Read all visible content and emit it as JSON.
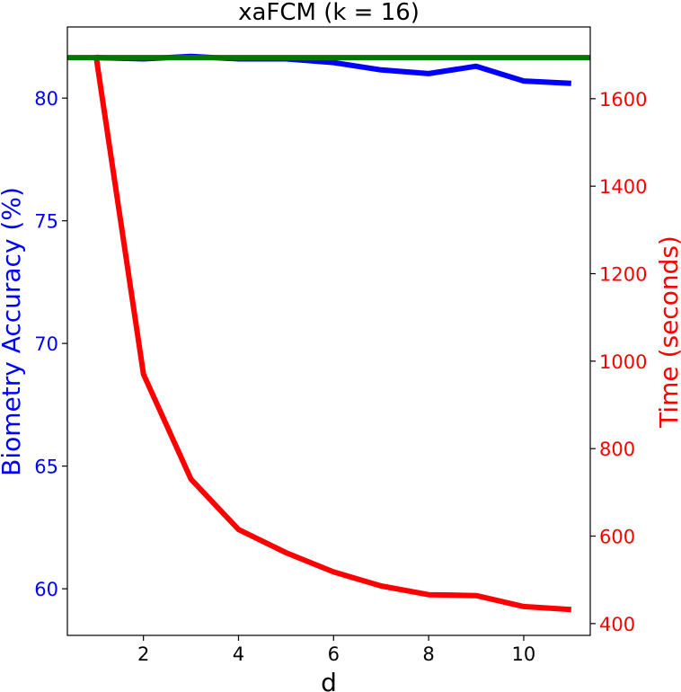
{
  "chart_data": {
    "type": "line",
    "title": "xaFCM (k = 16)",
    "xlabel": "d",
    "ylabel_left": "Biometry Accuracy (%)",
    "ylabel_right": "Time (seconds)",
    "xlim": [
      0.4,
      11.4
    ],
    "ylim_left": [
      58.1,
      82.9
    ],
    "ylim_right": [
      373,
      1764
    ],
    "x_ticks": [
      2,
      4,
      6,
      8,
      10
    ],
    "y_ticks_left": [
      60,
      65,
      70,
      75,
      80
    ],
    "y_ticks_right": [
      400,
      600,
      800,
      1000,
      1200,
      1400,
      1600
    ],
    "grid": false,
    "colors": {
      "accuracy": "#0000ff",
      "time": "#ff0000",
      "baseline": "#007700",
      "axes": "#000000"
    },
    "x": [
      1,
      2,
      3,
      4,
      5,
      6,
      7,
      8,
      9,
      10,
      11
    ],
    "series": [
      {
        "axis": "left",
        "color": "accuracy",
        "values": [
          81.65,
          81.6,
          81.7,
          81.6,
          81.6,
          81.45,
          81.15,
          81.0,
          81.3,
          80.7,
          80.6
        ]
      },
      {
        "axis": "right",
        "color": "time",
        "values": [
          1700,
          970,
          730,
          615,
          562,
          518,
          486,
          466,
          464,
          439,
          432
        ]
      }
    ],
    "baseline_left": 81.65
  }
}
